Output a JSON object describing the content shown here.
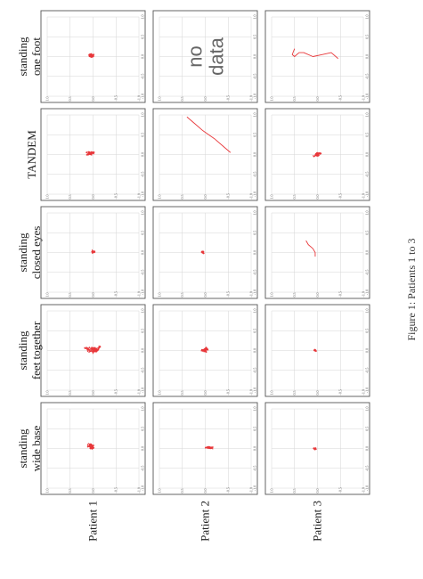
{
  "caption": "Figure 1: Patients 1 to 3",
  "conditions": [
    "standing wide base",
    "standing feet together",
    "standing closed eyes",
    "TANDEM",
    "standing one foot"
  ],
  "condition_lines": [
    [
      "standing",
      "wide base"
    ],
    [
      "standing",
      "feet together"
    ],
    [
      "standing",
      "closed eyes"
    ],
    [
      "TANDEM"
    ],
    [
      "standing",
      "one foot"
    ]
  ],
  "patients": [
    "Patient 1",
    "Patient 2",
    "Patient 3"
  ],
  "no_data_lines": [
    "no",
    "data"
  ],
  "colors": {
    "trace": "#e8373a",
    "grid": "#d6d6d6",
    "frame": "#555555"
  },
  "chart_data": {
    "type": "line",
    "layout": "small-multiples grid, rotated 90 degrees counter-clockwise",
    "axis_ticks": [
      "-1.0",
      "-0.5",
      "0.0",
      "0.5",
      "1.0"
    ],
    "xlim": [
      -1.0,
      1.0
    ],
    "ylim": [
      -1.0,
      1.0
    ],
    "grid": true,
    "panels": [
      {
        "patient": "Patient 1",
        "condition": "standing wide base",
        "data": true,
        "center": [
          0.05,
          0.05
        ],
        "spread": [
          0.12,
          0.1
        ]
      },
      {
        "patient": "Patient 1",
        "condition": "standing feet together",
        "data": true,
        "center": [
          0.02,
          0.02
        ],
        "spread": [
          0.16,
          0.2
        ]
      },
      {
        "patient": "Patient 1",
        "condition": "standing closed eyes",
        "data": true,
        "center": [
          0.02,
          0.0
        ],
        "spread": [
          0.05,
          0.06
        ]
      },
      {
        "patient": "Patient 1",
        "condition": "TANDEM",
        "data": true,
        "center": [
          0.02,
          0.05
        ],
        "spread": [
          0.1,
          0.12
        ]
      },
      {
        "patient": "Patient 1",
        "condition": "standing one foot",
        "data": true,
        "center": [
          0.05,
          0.05
        ],
        "spread": [
          0.12,
          0.1
        ]
      },
      {
        "patient": "Patient 2",
        "condition": "standing wide base",
        "data": true,
        "center": [
          0.02,
          -0.1
        ],
        "spread": [
          0.06,
          0.12
        ]
      },
      {
        "patient": "Patient 2",
        "condition": "standing feet together",
        "data": true,
        "center": [
          0.02,
          0.0
        ],
        "spread": [
          0.1,
          0.12
        ]
      },
      {
        "patient": "Patient 2",
        "condition": "standing closed eyes",
        "data": true,
        "center": [
          0.0,
          0.05
        ],
        "spread": [
          0.05,
          0.04
        ]
      },
      {
        "patient": "Patient 2",
        "condition": "TANDEM",
        "data": true,
        "path": [
          [
            0.05,
            -0.55
          ],
          [
            0.2,
            -0.4
          ],
          [
            0.4,
            -0.2
          ],
          [
            0.6,
            0.05
          ],
          [
            0.8,
            0.25
          ],
          [
            0.95,
            0.4
          ]
        ]
      },
      {
        "patient": "Patient 2",
        "condition": "standing one foot",
        "data": false
      },
      {
        "patient": "Patient 3",
        "condition": "standing wide base",
        "data": true,
        "center": [
          0.0,
          0.05
        ],
        "spread": [
          0.06,
          0.05
        ]
      },
      {
        "patient": "Patient 3",
        "condition": "standing feet together",
        "data": true,
        "center": [
          0.0,
          0.05
        ],
        "spread": [
          0.05,
          0.05
        ]
      },
      {
        "patient": "Patient 3",
        "condition": "standing closed eyes",
        "data": true,
        "path": [
          [
            -0.1,
            0.05
          ],
          [
            0.0,
            0.05
          ],
          [
            0.1,
            0.1
          ],
          [
            0.2,
            0.2
          ],
          [
            0.3,
            0.25
          ]
        ]
      },
      {
        "patient": "Patient 3",
        "condition": "TANDEM",
        "data": true,
        "center": [
          0.0,
          0.0
        ],
        "spread": [
          0.08,
          0.12
        ]
      },
      {
        "patient": "Patient 3",
        "condition": "standing one foot",
        "data": true,
        "path": [
          [
            -0.05,
            -0.45
          ],
          [
            0.1,
            -0.3
          ],
          [
            0.05,
            -0.1
          ],
          [
            0.0,
            0.1
          ],
          [
            0.1,
            0.3
          ],
          [
            0.1,
            0.4
          ],
          [
            0.05,
            0.45
          ],
          [
            0.0,
            0.5
          ],
          [
            0.05,
            0.55
          ],
          [
            0.2,
            0.5
          ]
        ]
      }
    ]
  }
}
